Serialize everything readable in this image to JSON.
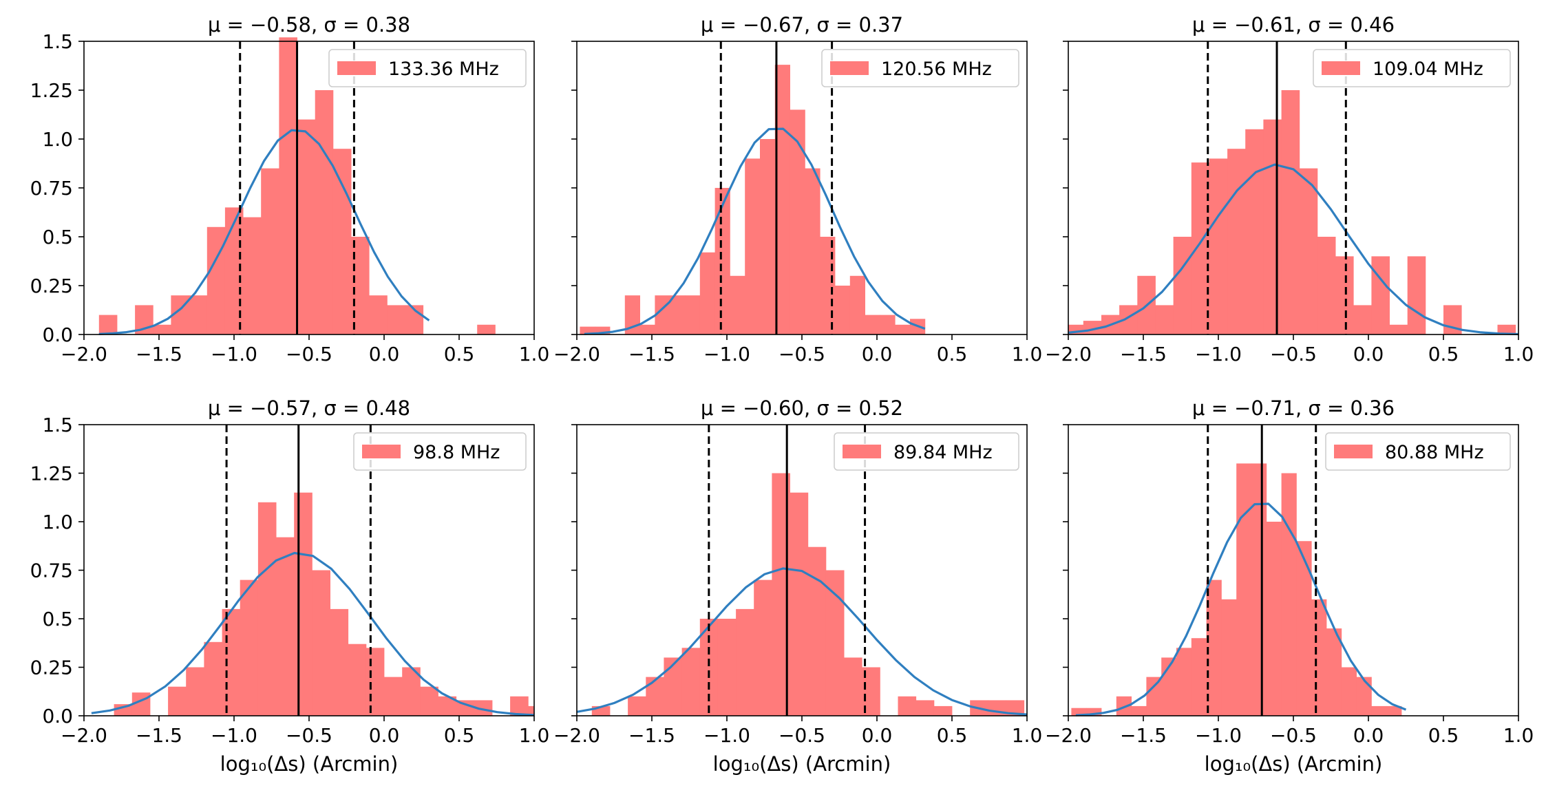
{
  "chart_data": [
    {
      "type": "bar",
      "title": "μ = −0.58, σ = 0.38",
      "legend": "133.36 MHz",
      "legend_position": "top-right",
      "xlabel": "",
      "ylabel": "",
      "xlim": [
        -2.0,
        1.0
      ],
      "ylim": [
        0,
        1.5
      ],
      "xticks": [
        "−2.0",
        "−1.5",
        "−1.0",
        "−0.5",
        "0.0",
        "0.5",
        "1.0"
      ],
      "yticks": [
        "0.0",
        "0.25",
        "0.5",
        "0.75",
        "1.0",
        "1.25",
        "1.5"
      ],
      "mean": -0.58,
      "sigma_lines": [
        -0.96,
        -0.2
      ],
      "bin_edges": [
        -1.9,
        -1.78,
        -1.66,
        -1.54,
        -1.42,
        -1.3,
        -1.18,
        -1.06,
        -0.94,
        -0.82,
        -0.7,
        -0.58,
        -0.46,
        -0.34,
        -0.22,
        -0.1,
        0.02,
        0.14,
        0.26,
        0.38,
        0.5,
        0.62,
        0.74,
        0.86
      ],
      "values": [
        0.1,
        0.0,
        0.15,
        0.05,
        0.2,
        0.2,
        0.55,
        0.65,
        0.6,
        0.85,
        1.52,
        1.1,
        1.25,
        0.95,
        0.5,
        0.2,
        0.15,
        0.15,
        0.0,
        0.0,
        0.0,
        0.05,
        0.0
      ],
      "fit": {
        "x": [
          -1.9,
          0.3
        ],
        "mu": -0.58,
        "sigma": 0.38,
        "amp": 1.05
      }
    },
    {
      "type": "bar",
      "title": "μ = −0.67, σ = 0.37",
      "legend": "120.56 MHz",
      "legend_position": "top-right",
      "xlabel": "",
      "ylabel": "",
      "xlim": [
        -2.0,
        1.0
      ],
      "ylim": [
        0,
        1.5
      ],
      "xticks": [
        "−2.0",
        "−1.5",
        "−1.0",
        "−0.5",
        "0.0",
        "0.5",
        "1.0"
      ],
      "yticks": [],
      "mean": -0.67,
      "sigma_lines": [
        -1.04,
        -0.3
      ],
      "bin_edges": [
        -1.98,
        -1.88,
        -1.78,
        -1.68,
        -1.58,
        -1.48,
        -1.38,
        -1.28,
        -1.18,
        -1.08,
        -0.98,
        -0.88,
        -0.78,
        -0.68,
        -0.58,
        -0.48,
        -0.38,
        -0.28,
        -0.18,
        -0.08,
        0.02,
        0.12,
        0.22,
        0.32
      ],
      "values": [
        0.04,
        0.04,
        0.0,
        0.2,
        0.05,
        0.2,
        0.2,
        0.2,
        0.42,
        0.75,
        0.3,
        0.9,
        1.0,
        1.38,
        1.15,
        0.85,
        0.5,
        0.25,
        0.3,
        0.1,
        0.1,
        0.05,
        0.08
      ],
      "fit": {
        "x": [
          -1.95,
          0.32
        ],
        "mu": -0.67,
        "sigma": 0.37,
        "amp": 1.06
      }
    },
    {
      "type": "bar",
      "title": "μ = −0.61, σ = 0.46",
      "legend": "109.04 MHz",
      "legend_position": "top-right",
      "xlabel": "",
      "ylabel": "",
      "xlim": [
        -2.0,
        1.0
      ],
      "ylim": [
        0,
        1.5
      ],
      "xticks": [
        "−2.0",
        "−1.5",
        "−1.0",
        "−0.5",
        "0.0",
        "0.5",
        "1.0"
      ],
      "yticks": [],
      "mean": -0.61,
      "sigma_lines": [
        -1.07,
        -0.15
      ],
      "bin_edges": [
        -2.02,
        -1.9,
        -1.78,
        -1.66,
        -1.54,
        -1.42,
        -1.3,
        -1.18,
        -1.06,
        -0.94,
        -0.82,
        -0.7,
        -0.58,
        -0.46,
        -0.34,
        -0.22,
        -0.1,
        0.02,
        0.14,
        0.26,
        0.38,
        0.5,
        0.62,
        0.74,
        0.86,
        0.98
      ],
      "values": [
        0.05,
        0.07,
        0.1,
        0.15,
        0.3,
        0.15,
        0.5,
        0.88,
        0.9,
        0.95,
        1.05,
        1.1,
        1.25,
        0.85,
        0.5,
        0.4,
        0.15,
        0.4,
        0.05,
        0.4,
        0.0,
        0.15,
        0.0,
        0.0,
        0.05
      ],
      "fit": {
        "x": [
          -2.0,
          1.0
        ],
        "mu": -0.61,
        "sigma": 0.46,
        "amp": 0.87
      }
    },
    {
      "type": "bar",
      "title": "μ = −0.57, σ = 0.48",
      "legend": "98.8 MHz",
      "legend_position": "top-right",
      "xlabel": "log₁₀(Δs) (Arcmin)",
      "ylabel": "",
      "xlim": [
        -2.0,
        1.0
      ],
      "ylim": [
        0,
        1.5
      ],
      "xticks": [
        "−2.0",
        "−1.5",
        "−1.0",
        "−0.5",
        "0.0",
        "0.5",
        "1.0"
      ],
      "yticks": [
        "0.0",
        "0.25",
        "0.5",
        "0.75",
        "1.0",
        "1.25",
        "1.5"
      ],
      "mean": -0.57,
      "sigma_lines": [
        -1.05,
        -0.09
      ],
      "bin_edges": [
        -1.8,
        -1.68,
        -1.56,
        -1.44,
        -1.32,
        -1.2,
        -1.08,
        -0.96,
        -0.84,
        -0.72,
        -0.6,
        -0.48,
        -0.36,
        -0.24,
        -0.12,
        0.0,
        0.12,
        0.24,
        0.36,
        0.48,
        0.6,
        0.72,
        0.84,
        0.96,
        1.08
      ],
      "values": [
        0.06,
        0.12,
        0.0,
        0.15,
        0.25,
        0.38,
        0.55,
        0.7,
        1.1,
        0.92,
        1.15,
        0.75,
        0.55,
        0.37,
        0.35,
        0.2,
        0.25,
        0.15,
        0.1,
        0.08,
        0.08,
        0.0,
        0.1,
        0.05
      ],
      "fit": {
        "x": [
          -1.95,
          1.0
        ],
        "mu": -0.57,
        "sigma": 0.48,
        "amp": 0.84
      }
    },
    {
      "type": "bar",
      "title": "μ = −0.60, σ = 0.52",
      "legend": "89.84 MHz",
      "legend_position": "top-right",
      "xlabel": "log₁₀(Δs) (Arcmin)",
      "ylabel": "",
      "xlim": [
        -2.0,
        1.0
      ],
      "ylim": [
        0,
        1.5
      ],
      "xticks": [
        "−2.0",
        "−1.5",
        "−1.0",
        "−0.5",
        "0.0",
        "0.5",
        "1.0"
      ],
      "yticks": [],
      "mean": -0.6,
      "sigma_lines": [
        -1.12,
        -0.08
      ],
      "bin_edges": [
        -1.9,
        -1.78,
        -1.66,
        -1.54,
        -1.42,
        -1.3,
        -1.18,
        -1.06,
        -0.94,
        -0.82,
        -0.7,
        -0.58,
        -0.46,
        -0.34,
        -0.22,
        -0.1,
        0.02,
        0.14,
        0.26,
        0.38,
        0.5,
        0.62,
        0.74,
        0.86,
        0.98
      ],
      "values": [
        0.05,
        0.0,
        0.1,
        0.2,
        0.3,
        0.35,
        0.5,
        0.5,
        0.55,
        0.7,
        1.25,
        1.15,
        0.87,
        0.75,
        0.3,
        0.25,
        0.0,
        0.1,
        0.08,
        0.05,
        0.0,
        0.08,
        0.08,
        0.08
      ],
      "fit": {
        "x": [
          -2.0,
          1.0
        ],
        "mu": -0.6,
        "sigma": 0.52,
        "amp": 0.76
      }
    },
    {
      "type": "bar",
      "title": "μ = −0.71, σ = 0.36",
      "legend": "80.88 MHz",
      "legend_position": "top-right",
      "xlabel": "log₁₀(Δs) (Arcmin)",
      "ylabel": "",
      "xlim": [
        -2.0,
        1.0
      ],
      "ylim": [
        0,
        1.5
      ],
      "xticks": [
        "−2.0",
        "−1.5",
        "−1.0",
        "−0.5",
        "0.0",
        "0.5",
        "1.0"
      ],
      "yticks": [],
      "mean": -0.71,
      "sigma_lines": [
        -1.07,
        -0.35
      ],
      "bin_edges": [
        -1.98,
        -1.88,
        -1.78,
        -1.68,
        -1.58,
        -1.48,
        -1.38,
        -1.28,
        -1.18,
        -1.08,
        -0.98,
        -0.88,
        -0.78,
        -0.68,
        -0.58,
        -0.48,
        -0.38,
        -0.28,
        -0.18,
        -0.08,
        0.02,
        0.12,
        0.22
      ],
      "values": [
        0.04,
        0.04,
        0.0,
        0.1,
        0.05,
        0.2,
        0.3,
        0.35,
        0.4,
        0.7,
        0.6,
        1.3,
        1.3,
        1.0,
        1.25,
        0.9,
        0.6,
        0.45,
        0.25,
        0.2,
        0.05,
        0.05
      ],
      "fit": {
        "x": [
          -1.95,
          0.25
        ],
        "mu": -0.71,
        "sigma": 0.36,
        "amp": 1.1
      }
    }
  ],
  "colors": {
    "bars": "#ff7b7b",
    "fit_line": "#2f7fc0",
    "mean_line": "#000000",
    "sigma_line": "#000000"
  }
}
